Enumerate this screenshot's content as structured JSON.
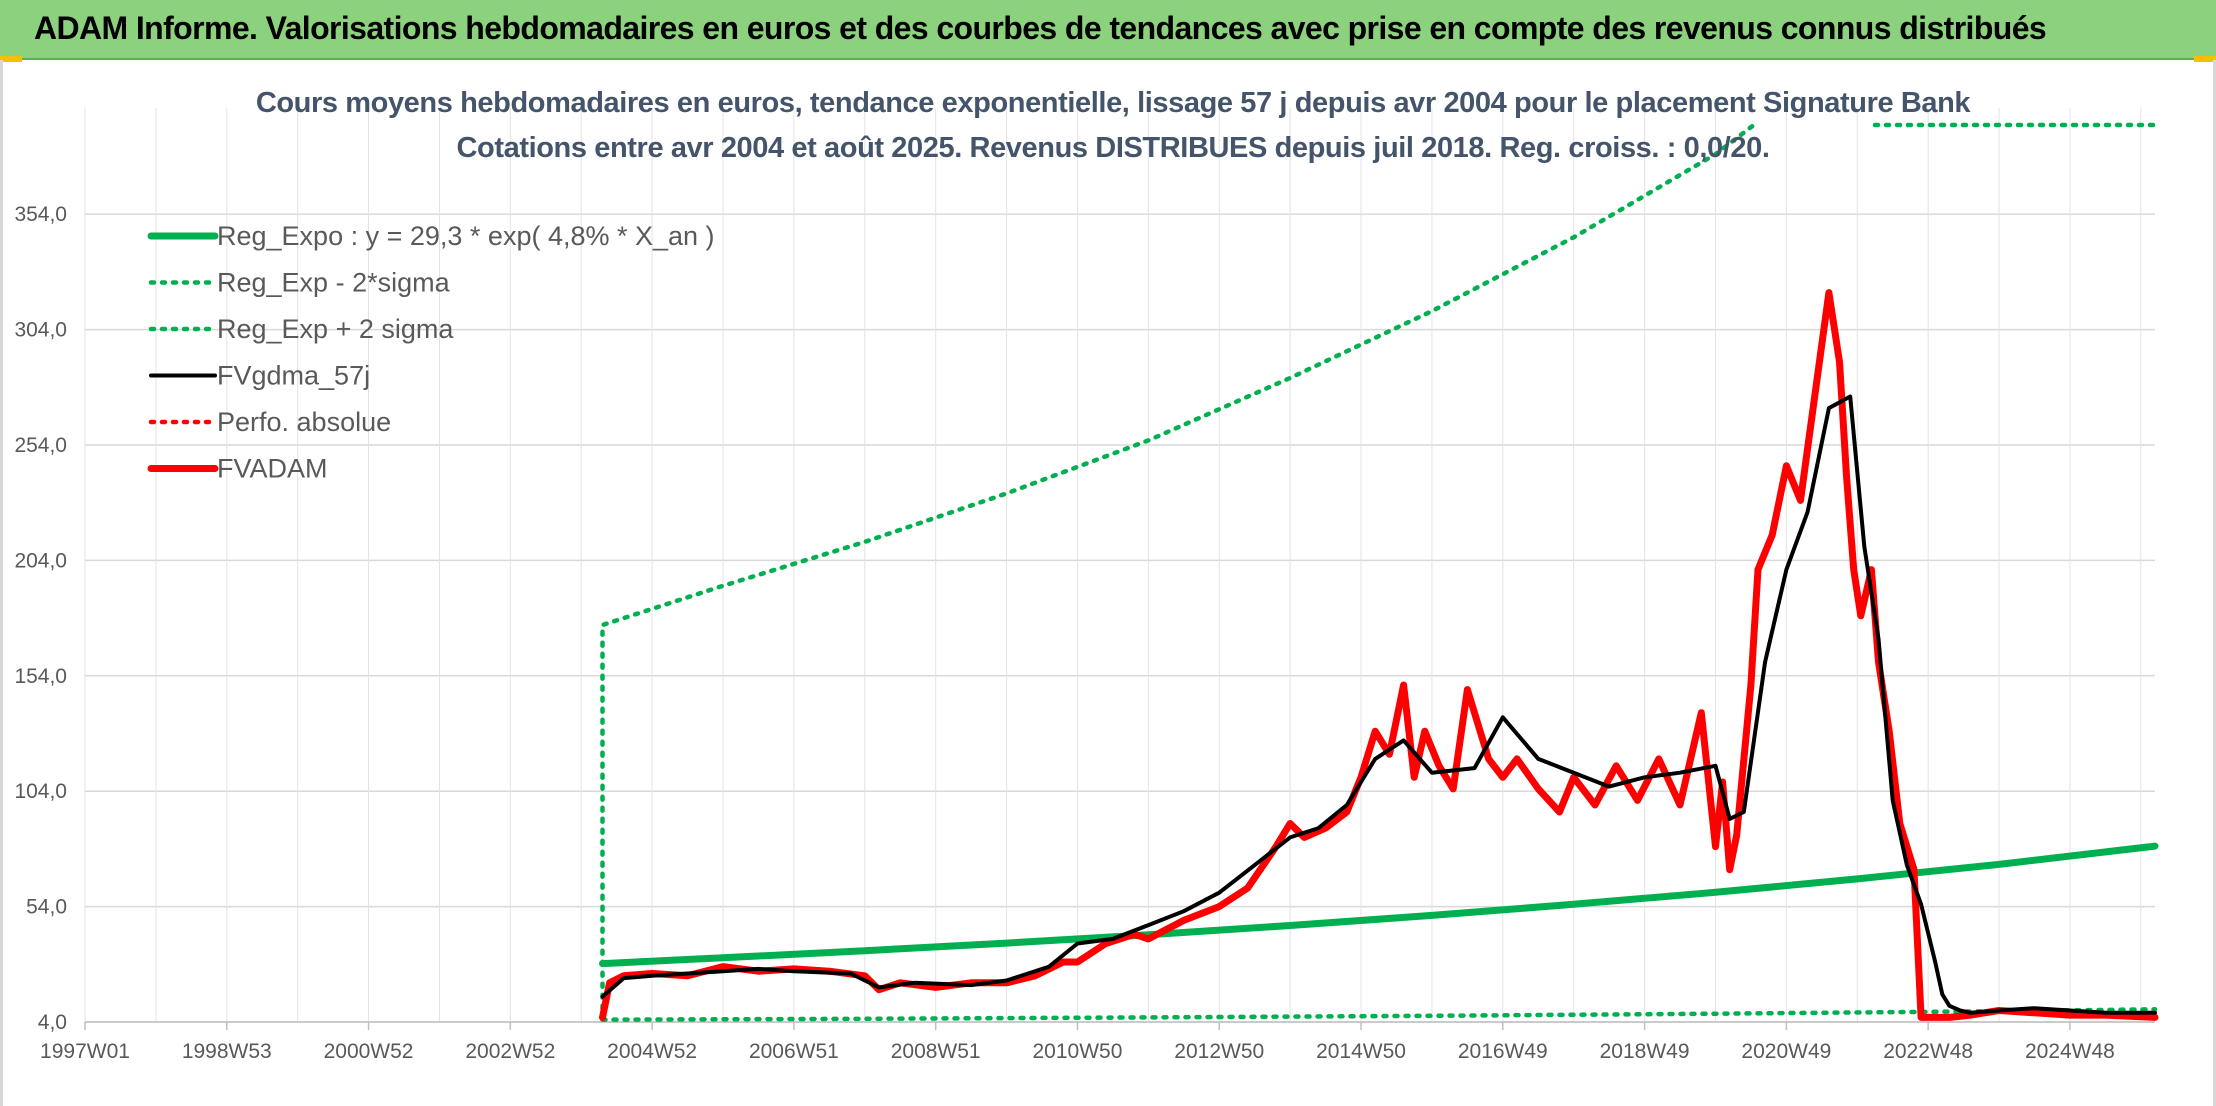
{
  "banner": {
    "title": "ADAM Informe. Valorisations hebdomadaires en euros et des courbes de tendances avec prise en compte des revenus connus distribués"
  },
  "chart_data": {
    "type": "line",
    "title": [
      "Cours moyens hebdomadaires en euros, tendance exponentielle, lissage 57 j depuis avr 2004 pour le placement Signature Bank",
      "Cotations entre avr 2004 et août 2025. Revenus DISTRIBUES depuis juil 2018. Reg. croiss. : 0,0/20."
    ],
    "xlabel": "",
    "ylabel": "",
    "x_tick_labels": [
      "1997W01",
      "1998W53",
      "2000W52",
      "2002W52",
      "2004W52",
      "2006W51",
      "2008W51",
      "2010W50",
      "2012W50",
      "2014W50",
      "2016W49",
      "2018W49",
      "2020W49",
      "2022W48",
      "2024W48"
    ],
    "x_tick_years": [
      1997.0,
      1999.0,
      2001.0,
      2003.0,
      2005.0,
      2007.0,
      2009.0,
      2011.0,
      2013.0,
      2015.0,
      2017.0,
      2019.0,
      2021.0,
      2023.0,
      2025.0
    ],
    "xlim": [
      1997.0,
      2026.2
    ],
    "y_tick_labels": [
      "4,0",
      "54,0",
      "104,0",
      "154,0",
      "204,0",
      "254,0",
      "304,0",
      "354,0"
    ],
    "y_ticks": [
      4,
      54,
      104,
      154,
      204,
      254,
      304,
      354
    ],
    "ylim": [
      4,
      400
    ],
    "grid": true,
    "legend_position": "top-left",
    "series": [
      {
        "name": "Reg_Expo : y = 29,3 * exp( 4,8% *  X_an )",
        "style": "solid-thick",
        "color": "#00b050",
        "x": [
          2004.3,
          2006,
          2008,
          2010,
          2012,
          2014,
          2016,
          2018,
          2020,
          2022,
          2024,
          2026.2
        ],
        "y": [
          29.3,
          31.8,
          34.9,
          38.2,
          41.8,
          45.8,
          50.2,
          55.0,
          60.2,
          66.0,
          72.3,
          80.2
        ]
      },
      {
        "name": "Reg_Exp - 2*sigma",
        "style": "dotted",
        "color": "#00b050",
        "x": [
          2004.3,
          2008,
          2012,
          2016,
          2020,
          2024,
          2026.2
        ],
        "y": [
          5.0,
          5.4,
          6.0,
          6.7,
          7.6,
          8.7,
          9.5
        ]
      },
      {
        "name": "Reg_Exp + 2 sigma",
        "style": "dotted",
        "color": "#00b050",
        "x": [
          2004.3,
          2004.3,
          2006,
          2008,
          2010,
          2012,
          2014,
          2016,
          2018,
          2020,
          2020.6
        ],
        "y": [
          5.0,
          176,
          193,
          212,
          233,
          256,
          283,
          312,
          344,
          380,
          394
        ]
      },
      {
        "name": "FVgdma_57j",
        "style": "solid",
        "color": "#000000",
        "x": [
          2004.3,
          2004.6,
          2005,
          2006,
          2006.5,
          2007,
          2007.8,
          2008.2,
          2008.7,
          2009.5,
          2010,
          2010.6,
          2011,
          2011.5,
          2012,
          2012.5,
          2013,
          2013.5,
          2014,
          2014.4,
          2014.8,
          2015.2,
          2015.6,
          2016,
          2016.6,
          2017,
          2017.5,
          2018,
          2018.5,
          2019,
          2019.5,
          2020,
          2020.2,
          2020.4,
          2020.7,
          2021,
          2021.3,
          2021.6,
          2021.9,
          2022.1,
          2022.3,
          2022.5,
          2022.7,
          2022.9,
          2023.1,
          2023.2,
          2023.3,
          2023.45,
          2023.6,
          2024,
          2024.5,
          2025,
          2025.5,
          2026.2
        ],
        "y": [
          15,
          23,
          24,
          26,
          27,
          26,
          25,
          19,
          21,
          20,
          22,
          28,
          38,
          40,
          46,
          52,
          60,
          72,
          84,
          88,
          98,
          118,
          126,
          112,
          114,
          136,
          118,
          112,
          106,
          110,
          112,
          115,
          92,
          95,
          160,
          200,
          225,
          270,
          275,
          210,
          170,
          100,
          72,
          55,
          30,
          16,
          11,
          9,
          8,
          9,
          10,
          9,
          8,
          8
        ]
      },
      {
        "name": "Perfo. absolue",
        "style": "dotted",
        "color": "#ff0000",
        "x": [],
        "y": []
      },
      {
        "name": "FVADAM",
        "style": "solid-thick",
        "color": "#ff0000",
        "x": [
          2004.3,
          2004.4,
          2004.6,
          2005,
          2005.5,
          2006,
          2006.5,
          2007,
          2007.5,
          2008,
          2008.2,
          2008.5,
          2009,
          2009.5,
          2010,
          2010.4,
          2010.8,
          2011,
          2011.4,
          2011.8,
          2012,
          2012.5,
          2013,
          2013.4,
          2013.8,
          2014,
          2014.2,
          2014.5,
          2014.8,
          2015,
          2015.2,
          2015.4,
          2015.6,
          2015.75,
          2015.9,
          2016.1,
          2016.3,
          2016.5,
          2016.8,
          2017,
          2017.2,
          2017.5,
          2017.8,
          2018,
          2018.3,
          2018.6,
          2018.9,
          2019.2,
          2019.5,
          2019.8,
          2020,
          2020.1,
          2020.2,
          2020.3,
          2020.5,
          2020.6,
          2020.8,
          2021,
          2021.2,
          2021.4,
          2021.6,
          2021.75,
          2021.85,
          2021.95,
          2022.05,
          2022.2,
          2022.3,
          2022.45,
          2022.6,
          2022.8,
          2022.9,
          2023.0,
          2023.15,
          2023.3,
          2023.6,
          2024,
          2024.5,
          2025,
          2025.5,
          2026.2
        ],
        "y": [
          6,
          21,
          24,
          25,
          24,
          28,
          26,
          27,
          26,
          24,
          18,
          21,
          19,
          21,
          21,
          24,
          30,
          30,
          38,
          42,
          40,
          48,
          54,
          62,
          80,
          90,
          84,
          88,
          95,
          110,
          130,
          120,
          150,
          110,
          130,
          115,
          105,
          148,
          118,
          110,
          118,
          105,
          95,
          110,
          98,
          115,
          100,
          118,
          98,
          138,
          80,
          108,
          70,
          85,
          150,
          200,
          215,
          245,
          230,
          275,
          320,
          290,
          240,
          200,
          180,
          200,
          160,
          130,
          90,
          70,
          6,
          6,
          6,
          6,
          7,
          9,
          8,
          7,
          7,
          6
        ]
      }
    ]
  }
}
